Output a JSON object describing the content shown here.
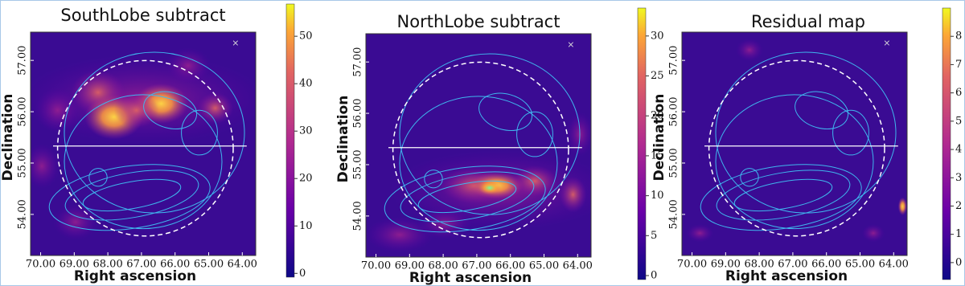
{
  "chart_data": [
    {
      "type": "heatmap",
      "title": "SouthLobe subtract",
      "xlabel": "Right ascension",
      "ylabel": "Declination",
      "xlim": [
        70.3,
        63.6
      ],
      "ylim": [
        53.2,
        57.55
      ],
      "xticks": [
        {
          "value": 70,
          "label": "70.00"
        },
        {
          "value": 69,
          "label": "69.00"
        },
        {
          "value": 68,
          "label": "68.00"
        },
        {
          "value": 67,
          "label": "67.00"
        },
        {
          "value": 66,
          "label": "66.00"
        },
        {
          "value": 65,
          "label": "65.00"
        },
        {
          "value": 64,
          "label": "64.00"
        }
      ],
      "yticks": [
        {
          "value": 54,
          "label": "54.00"
        },
        {
          "value": 55,
          "label": "55.00"
        },
        {
          "value": 56,
          "label": "56.00"
        },
        {
          "value": 57,
          "label": "57.00"
        }
      ],
      "colorbar": {
        "lim": [
          -0.8,
          56.8
        ],
        "ticks": [
          0,
          10,
          20,
          30,
          40,
          50
        ]
      }
    },
    {
      "type": "heatmap",
      "title": "NorthLobe subtract",
      "xlabel": "Right ascension",
      "ylabel": "Declination",
      "xlim": [
        70.3,
        63.6
      ],
      "ylim": [
        53.2,
        57.55
      ],
      "xticks": [
        {
          "value": 70,
          "label": "70.00"
        },
        {
          "value": 69,
          "label": "69.00"
        },
        {
          "value": 68,
          "label": "68.00"
        },
        {
          "value": 67,
          "label": "67.00"
        },
        {
          "value": 66,
          "label": "66.00"
        },
        {
          "value": 65,
          "label": "65.00"
        },
        {
          "value": 64,
          "label": "64.00"
        }
      ],
      "yticks": [
        {
          "value": 54,
          "label": "54.00"
        },
        {
          "value": 55,
          "label": "55.00"
        },
        {
          "value": 56,
          "label": "56.00"
        },
        {
          "value": 57,
          "label": "57.00"
        }
      ],
      "colorbar": {
        "lim": [
          -0.5,
          33.5
        ],
        "ticks": [
          0,
          5,
          10,
          15,
          20,
          25,
          30
        ]
      }
    },
    {
      "type": "heatmap",
      "title": "Residual map",
      "xlabel": "Right ascension",
      "ylabel": "Declination",
      "xlim": [
        70.3,
        63.6
      ],
      "ylim": [
        53.2,
        57.55
      ],
      "xticks": [
        {
          "value": 70,
          "label": "70.00"
        },
        {
          "value": 69,
          "label": "69.00"
        },
        {
          "value": 68,
          "label": "68.00"
        },
        {
          "value": 67,
          "label": "67.00"
        },
        {
          "value": 66,
          "label": "66.00"
        },
        {
          "value": 65,
          "label": "65.00"
        },
        {
          "value": 64,
          "label": "64.00"
        }
      ],
      "yticks": [
        {
          "value": 54,
          "label": "54.00"
        },
        {
          "value": 55,
          "label": "55.00"
        },
        {
          "value": 56,
          "label": "56.00"
        },
        {
          "value": 57,
          "label": "57.00"
        }
      ],
      "colorbar": {
        "lim": [
          -0.6,
          9.0
        ],
        "ticks": [
          0,
          1,
          2,
          3,
          4,
          5,
          6,
          7,
          8
        ]
      }
    }
  ]
}
